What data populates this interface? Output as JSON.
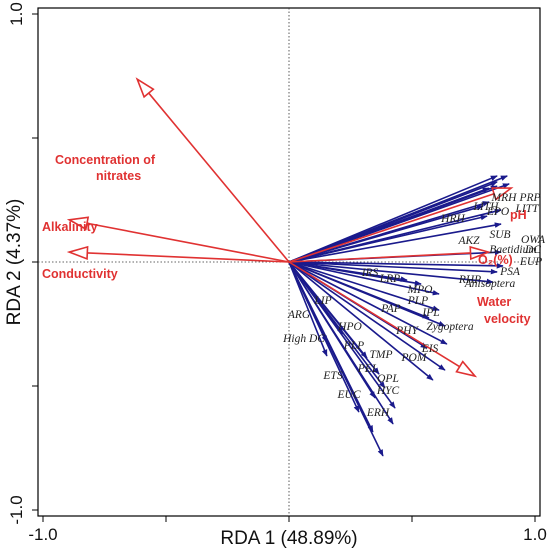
{
  "chart_data": {
    "type": "scatter",
    "subtype": "rda-biplot",
    "xlabel": "RDA 1 (48.89%)",
    "ylabel": "RDA 2 (4.37%)",
    "xlim": [
      -1.0,
      1.0
    ],
    "ylim": [
      -1.0,
      1.0
    ],
    "x_ticks": [
      "-1.0",
      "1.0"
    ],
    "y_ticks": [
      "1.0",
      "-1.0"
    ],
    "grid": false,
    "colors": {
      "environment": "#e03232",
      "taxa": "#1a1a8c",
      "frame": "#000000"
    },
    "environment_vectors": [
      {
        "label": "Concentration of nitrates",
        "x": -0.617,
        "y": 0.737
      },
      {
        "label": "Alkalinity",
        "x": -0.893,
        "y": 0.17
      },
      {
        "label": "Conductivity",
        "x": -0.893,
        "y": 0.04
      },
      {
        "label": "pH",
        "x": 0.903,
        "y": 0.298
      },
      {
        "label": "O₂(%)",
        "x": 0.811,
        "y": 0.04
      },
      {
        "label": "Water velocity",
        "x": 0.756,
        "y": -0.46
      }
    ],
    "taxa_vectors": [
      {
        "label": "MRH",
        "x": 0.846,
        "y": 0.347
      },
      {
        "label": "PRP",
        "x": 0.887,
        "y": 0.347
      },
      {
        "label": "LITH",
        "x": 0.846,
        "y": 0.323
      },
      {
        "label": "LITT",
        "x": 0.895,
        "y": 0.315
      },
      {
        "label": "EPO",
        "x": 0.846,
        "y": 0.306
      },
      {
        "label": "HRH",
        "x": 0.813,
        "y": 0.298
      },
      {
        "label": "SUB",
        "x": 0.813,
        "y": 0.242
      },
      {
        "label": "AKZ",
        "x": 0.789,
        "y": 0.226
      },
      {
        "label": "OWA",
        "x": 0.862,
        "y": 0.21
      },
      {
        "label": "Baetidium",
        "x": 0.805,
        "y": 0.185
      },
      {
        "label": "DC",
        "x": 0.862,
        "y": 0.153
      },
      {
        "label": "EUP",
        "x": 0.862,
        "y": 0.04
      },
      {
        "label": "PSA",
        "x": 0.87,
        "y": -0.016
      },
      {
        "label": "RHP",
        "x": 0.846,
        "y": -0.04
      },
      {
        "label": "Anisoptera",
        "x": 0.829,
        "y": -0.081
      },
      {
        "label": "IRS",
        "x": 0.48,
        "y": -0.073
      },
      {
        "label": "LRP",
        "x": 0.537,
        "y": -0.089
      },
      {
        "label": "MPO",
        "x": 0.61,
        "y": -0.129
      },
      {
        "label": "PLP",
        "x": 0.61,
        "y": -0.194
      },
      {
        "label": "PAP",
        "x": 0.569,
        "y": -0.226
      },
      {
        "label": "IPL",
        "x": 0.634,
        "y": -0.258
      },
      {
        "label": "PHY",
        "x": 0.561,
        "y": -0.347
      },
      {
        "label": "Zygoptera",
        "x": 0.642,
        "y": -0.331
      },
      {
        "label": "EIS",
        "x": 0.634,
        "y": -0.436
      },
      {
        "label": "POM",
        "x": 0.585,
        "y": -0.476
      },
      {
        "label": "ARG",
        "x": 0.154,
        "y": -0.323
      },
      {
        "label": "LIP",
        "x": 0.22,
        "y": -0.29
      },
      {
        "label": "High DC",
        "x": 0.154,
        "y": -0.379
      },
      {
        "label": "HPO",
        "x": 0.317,
        "y": -0.387
      },
      {
        "label": "PLP",
        "x": 0.366,
        "y": -0.452
      },
      {
        "label": "TMP",
        "x": 0.39,
        "y": -0.508
      },
      {
        "label": "PEL",
        "x": 0.35,
        "y": -0.548
      },
      {
        "label": "OPL",
        "x": 0.431,
        "y": -0.589
      },
      {
        "label": "ETS",
        "x": 0.284,
        "y": -0.605
      },
      {
        "label": "HYC",
        "x": 0.423,
        "y": -0.653
      },
      {
        "label": "EUC",
        "x": 0.341,
        "y": -0.685
      },
      {
        "label": "ERH",
        "x": 0.382,
        "y": -0.782
      }
    ]
  }
}
